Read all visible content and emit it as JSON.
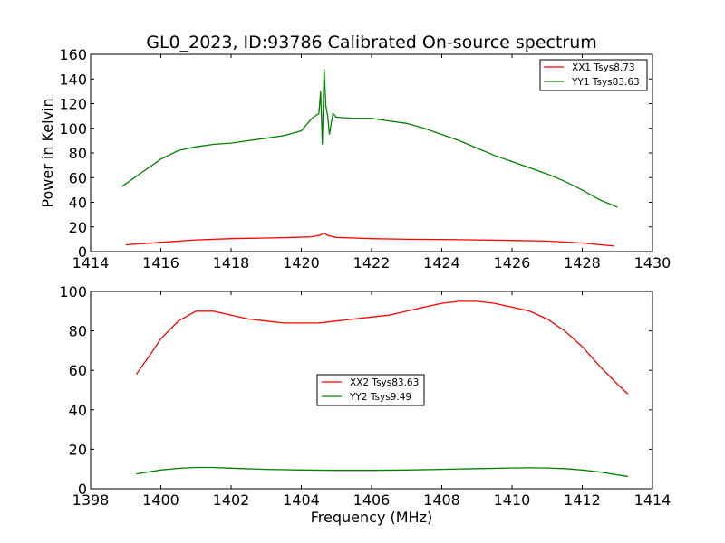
{
  "chart_data": [
    {
      "type": "line",
      "title": "GL0_2023, ID:93786 Calibrated On-source spectrum",
      "xlabel": "",
      "ylabel": "Power in Kelvin",
      "xlim": [
        1414,
        1430
      ],
      "ylim": [
        0,
        160
      ],
      "xticks": [
        1414,
        1416,
        1418,
        1420,
        1422,
        1424,
        1426,
        1428,
        1430
      ],
      "yticks": [
        0,
        20,
        40,
        60,
        80,
        100,
        120,
        140,
        160
      ],
      "legend": "top-right",
      "series": [
        {
          "name": "XX1 Tsys8.73",
          "color": "#ff0000",
          "x": [
            1415.0,
            1416.0,
            1417.0,
            1418.0,
            1419.0,
            1419.8,
            1420.3,
            1420.55,
            1420.65,
            1420.75,
            1421.0,
            1422.0,
            1423.0,
            1424.0,
            1425.0,
            1426.0,
            1427.0,
            1428.0,
            1428.9
          ],
          "y": [
            5.5,
            7.5,
            9.5,
            10.5,
            11.0,
            11.5,
            12.0,
            13.5,
            15.0,
            13.0,
            11.5,
            10.5,
            10.0,
            9.8,
            9.5,
            9.0,
            8.5,
            7.0,
            4.5
          ]
        },
        {
          "name": "YY1 Tsys83.63",
          "color": "#008000",
          "x": [
            1414.9,
            1415.5,
            1416.0,
            1416.5,
            1417.0,
            1417.5,
            1418.0,
            1418.5,
            1419.0,
            1419.5,
            1420.0,
            1420.3,
            1420.5,
            1420.55,
            1420.6,
            1420.65,
            1420.7,
            1420.75,
            1420.8,
            1420.9,
            1421.0,
            1421.5,
            1422.0,
            1422.5,
            1423.0,
            1423.5,
            1424.0,
            1424.5,
            1425.0,
            1425.5,
            1426.0,
            1426.5,
            1427.0,
            1427.5,
            1428.0,
            1428.5,
            1429.0
          ],
          "y": [
            53,
            65,
            75,
            82,
            85,
            87,
            88,
            90,
            92,
            94,
            98,
            108,
            112,
            130,
            87,
            148,
            118,
            110,
            95,
            112,
            109,
            108,
            108,
            106,
            104,
            100,
            95,
            90,
            84,
            78,
            73,
            68,
            63,
            57,
            50,
            42,
            36
          ]
        }
      ]
    },
    {
      "type": "line",
      "title": "",
      "xlabel": "Frequency (MHz)",
      "ylabel": "",
      "xlim": [
        1398,
        1414
      ],
      "ylim": [
        0,
        100
      ],
      "xticks": [
        1398,
        1400,
        1402,
        1404,
        1406,
        1408,
        1410,
        1412,
        1414
      ],
      "yticks": [
        0,
        20,
        40,
        60,
        80,
        100
      ],
      "legend": "center",
      "series": [
        {
          "name": "XX2 Tsys83.63",
          "color": "#ff0000",
          "x": [
            1399.3,
            1399.7,
            1400.0,
            1400.5,
            1401.0,
            1401.5,
            1402.0,
            1402.5,
            1403.0,
            1403.5,
            1404.0,
            1404.5,
            1405.0,
            1405.5,
            1406.0,
            1406.5,
            1407.0,
            1407.5,
            1408.0,
            1408.5,
            1409.0,
            1409.5,
            1410.0,
            1410.5,
            1411.0,
            1411.5,
            1412.0,
            1412.5,
            1413.0,
            1413.3
          ],
          "y": [
            58,
            68,
            76,
            85,
            90,
            90,
            88,
            86,
            85,
            84,
            84,
            84,
            85,
            86,
            87,
            88,
            90,
            92,
            94,
            95,
            95,
            94,
            92,
            90,
            86,
            80,
            72,
            62,
            53,
            48
          ]
        },
        {
          "name": "YY2 Tsys9.49",
          "color": "#008000",
          "x": [
            1399.3,
            1400.0,
            1400.5,
            1401.0,
            1401.5,
            1402.0,
            1403.0,
            1404.0,
            1405.0,
            1406.0,
            1407.0,
            1408.0,
            1409.0,
            1410.0,
            1410.5,
            1411.0,
            1411.5,
            1412.0,
            1412.5,
            1413.0,
            1413.3
          ],
          "y": [
            7.5,
            9.5,
            10.3,
            10.8,
            10.8,
            10.4,
            9.8,
            9.5,
            9.3,
            9.3,
            9.5,
            9.8,
            10.2,
            10.5,
            10.6,
            10.5,
            10.2,
            9.5,
            8.5,
            7.0,
            6.3
          ]
        }
      ]
    }
  ]
}
